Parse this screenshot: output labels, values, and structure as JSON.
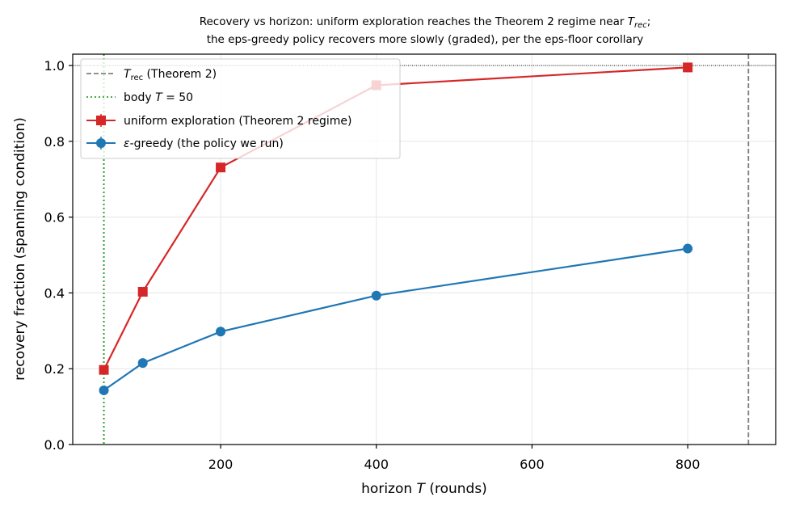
{
  "chart_data": {
    "type": "line",
    "title_line1": "Recovery vs horizon: uniform exploration reaches the Theorem 2 regime near ",
    "title_line1_math": "T",
    "title_line1_math_sub": "rec",
    "title_line1_end": ";",
    "title_line2": "the eps-greedy policy recovers more slowly (graded), per the eps-floor corollary",
    "xlabel_prefix": "horizon ",
    "xlabel_var": "T",
    "xlabel_suffix": " (rounds)",
    "ylabel": "recovery fraction (spanning condition)",
    "xlim": [
      10,
      913
    ],
    "ylim": [
      0,
      1.03
    ],
    "xticks": [
      200,
      400,
      600,
      800
    ],
    "yticks": [
      0.0,
      0.2,
      0.4,
      0.6,
      0.8,
      1.0
    ],
    "grid": true,
    "legend_position": "top-left",
    "reference_lines": {
      "T_rec": 878,
      "body_T": 50,
      "y_one": 1.0
    },
    "legend": {
      "t_rec_var": "T",
      "t_rec_sub": "rec",
      "t_rec_rest": " (Theorem 2)",
      "body_prefix": "body ",
      "body_var": "T",
      "body_rest": " = 50",
      "uniform": "uniform exploration (Theorem 2 regime)",
      "eps_var": "ε",
      "eps_rest": "-greedy (the policy we run)"
    },
    "x": [
      50,
      100,
      200,
      400,
      800
    ],
    "series": [
      {
        "key": "uniform",
        "values": [
          0.197,
          0.403,
          0.731,
          0.948,
          0.995
        ],
        "color": "#d62728",
        "marker": "square"
      },
      {
        "key": "eps",
        "values": [
          0.143,
          0.215,
          0.298,
          0.393,
          0.517
        ],
        "color": "#1f77b4",
        "marker": "circle"
      }
    ],
    "colors": {
      "t_rec_line": "#808080",
      "body_line": "#2ca02c",
      "grid": "#e6e6e6",
      "axis": "#000000"
    }
  }
}
